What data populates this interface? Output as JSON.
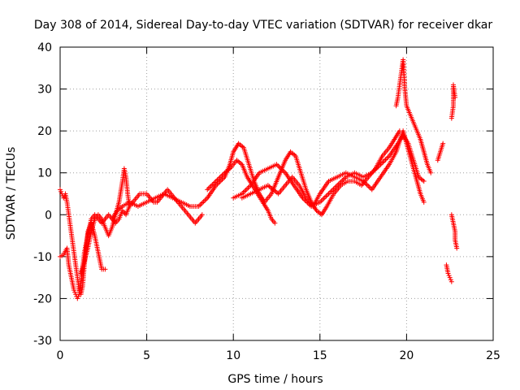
{
  "chart_data": {
    "type": "scatter",
    "title": "Day 308 of 2014, Sidereal Day-to-day VTEC variation (SDTVAR) for receiver dkar",
    "xlabel": "GPS time / hours",
    "ylabel": "SDTVAR / TECUs",
    "xlim": [
      0,
      25
    ],
    "ylim": [
      -30,
      40
    ],
    "xticks": [
      0,
      5,
      10,
      15,
      20,
      25
    ],
    "yticks": [
      -30,
      -20,
      -10,
      0,
      10,
      20,
      30,
      40
    ],
    "grid": true,
    "marker": "+",
    "color": "#ff0000",
    "series": [
      {
        "name": "s1",
        "points": [
          [
            0.0,
            -10
          ],
          [
            0.2,
            -9.5
          ],
          [
            0.4,
            -8
          ],
          [
            0.5,
            -12
          ],
          [
            0.6,
            -14
          ],
          [
            0.7,
            -16
          ],
          [
            0.8,
            -18
          ],
          [
            0.9,
            -19
          ],
          [
            1.0,
            -20
          ],
          [
            1.1,
            -19
          ],
          [
            1.2,
            -16
          ],
          [
            1.3,
            -13
          ],
          [
            1.4,
            -9
          ],
          [
            1.6,
            -5
          ],
          [
            1.8,
            -1
          ],
          [
            2.0,
            0
          ],
          [
            2.2,
            -1
          ],
          [
            2.4,
            -2
          ],
          [
            2.6,
            -1
          ],
          [
            2.8,
            0
          ],
          [
            3.0,
            -1
          ],
          [
            3.2,
            -2
          ],
          [
            3.4,
            -1
          ],
          [
            3.6,
            1
          ],
          [
            3.8,
            0
          ],
          [
            4.0,
            2
          ],
          [
            4.2,
            3
          ],
          [
            4.4,
            4
          ],
          [
            4.6,
            5
          ],
          [
            4.8,
            5
          ],
          [
            5.0,
            5
          ],
          [
            5.2,
            4
          ],
          [
            5.4,
            3
          ],
          [
            5.6,
            3
          ],
          [
            5.8,
            4
          ],
          [
            6.0,
            5
          ],
          [
            6.2,
            6
          ],
          [
            6.4,
            5
          ],
          [
            6.6,
            4
          ],
          [
            6.8,
            3
          ],
          [
            7.0,
            2
          ],
          [
            7.2,
            1
          ],
          [
            7.4,
            0
          ],
          [
            7.6,
            -1
          ],
          [
            7.8,
            -2
          ],
          [
            8.0,
            -1
          ],
          [
            8.2,
            0
          ]
        ]
      },
      {
        "name": "s2",
        "points": [
          [
            0.0,
            6
          ],
          [
            0.1,
            5
          ],
          [
            0.2,
            4
          ],
          [
            0.3,
            5
          ],
          [
            0.4,
            3
          ],
          [
            0.5,
            0
          ],
          [
            0.6,
            -3
          ],
          [
            0.7,
            -6
          ],
          [
            0.8,
            -9
          ],
          [
            0.9,
            -12
          ],
          [
            1.0,
            -15
          ],
          [
            1.1,
            -18
          ],
          [
            1.2,
            -19
          ],
          [
            1.3,
            -17
          ],
          [
            1.4,
            -12
          ],
          [
            1.5,
            -8
          ],
          [
            1.6,
            -4
          ],
          [
            1.8,
            -2
          ],
          [
            2.0,
            -5
          ],
          [
            2.2,
            -9
          ],
          [
            2.4,
            -13
          ],
          [
            2.6,
            -13
          ]
        ]
      },
      {
        "name": "s3",
        "points": [
          [
            1.2,
            -14
          ],
          [
            1.4,
            -11
          ],
          [
            1.6,
            -8
          ],
          [
            1.8,
            -4
          ],
          [
            2.0,
            -1
          ],
          [
            2.2,
            0
          ],
          [
            2.4,
            -1
          ],
          [
            2.6,
            -3
          ],
          [
            2.8,
            -5
          ],
          [
            3.0,
            -3
          ],
          [
            3.2,
            0
          ],
          [
            3.4,
            3
          ],
          [
            3.6,
            8
          ],
          [
            3.7,
            11
          ],
          [
            3.8,
            9
          ],
          [
            3.9,
            5
          ],
          [
            4.0,
            2
          ]
        ]
      },
      {
        "name": "s4",
        "points": [
          [
            3.0,
            -1
          ],
          [
            3.3,
            1
          ],
          [
            3.6,
            2
          ],
          [
            4.0,
            3
          ],
          [
            4.5,
            2
          ],
          [
            5.0,
            3
          ],
          [
            5.5,
            4
          ],
          [
            6.0,
            5
          ],
          [
            6.5,
            4
          ],
          [
            7.0,
            3
          ],
          [
            7.5,
            2
          ],
          [
            8.0,
            2
          ],
          [
            8.5,
            4
          ],
          [
            9.0,
            7
          ],
          [
            9.5,
            9
          ],
          [
            9.8,
            12
          ],
          [
            10.0,
            15
          ],
          [
            10.3,
            17
          ],
          [
            10.6,
            16
          ],
          [
            10.9,
            12
          ],
          [
            11.2,
            8
          ],
          [
            11.5,
            5
          ],
          [
            11.8,
            3
          ],
          [
            12.2,
            5
          ],
          [
            12.6,
            9
          ],
          [
            13.0,
            13
          ],
          [
            13.3,
            15
          ],
          [
            13.6,
            14
          ],
          [
            13.9,
            10
          ],
          [
            14.2,
            6
          ],
          [
            14.5,
            3
          ],
          [
            14.8,
            1
          ],
          [
            15.1,
            0
          ],
          [
            15.4,
            2
          ],
          [
            15.8,
            5
          ],
          [
            16.2,
            7
          ],
          [
            16.6,
            8
          ],
          [
            17.0,
            8
          ],
          [
            17.4,
            7
          ],
          [
            17.8,
            9
          ],
          [
            18.2,
            11
          ],
          [
            18.6,
            14
          ],
          [
            19.0,
            16
          ],
          [
            19.3,
            18
          ],
          [
            19.6,
            20
          ]
        ]
      },
      {
        "name": "s5",
        "points": [
          [
            8.5,
            6
          ],
          [
            9.0,
            8
          ],
          [
            9.5,
            10
          ],
          [
            9.8,
            11
          ],
          [
            10.2,
            13
          ],
          [
            10.5,
            12
          ],
          [
            10.8,
            9
          ],
          [
            11.1,
            7
          ],
          [
            11.4,
            5
          ],
          [
            11.7,
            3
          ],
          [
            12.0,
            1
          ],
          [
            12.2,
            -1
          ],
          [
            12.4,
            -2
          ]
        ]
      },
      {
        "name": "s6",
        "points": [
          [
            10.0,
            4
          ],
          [
            10.5,
            5
          ],
          [
            11.0,
            7
          ],
          [
            11.5,
            10
          ],
          [
            12.0,
            11
          ],
          [
            12.5,
            12
          ],
          [
            13.0,
            10
          ],
          [
            13.5,
            7
          ],
          [
            14.0,
            4
          ],
          [
            14.5,
            2
          ],
          [
            15.0,
            3
          ],
          [
            15.5,
            5
          ],
          [
            16.0,
            7
          ],
          [
            16.5,
            9
          ],
          [
            17.0,
            10
          ],
          [
            17.5,
            9
          ],
          [
            18.0,
            10
          ],
          [
            18.5,
            12
          ],
          [
            19.0,
            14
          ],
          [
            19.5,
            17
          ],
          [
            19.8,
            19
          ],
          [
            20.1,
            17
          ],
          [
            20.4,
            13
          ],
          [
            20.7,
            9
          ],
          [
            21.0,
            8
          ]
        ]
      },
      {
        "name": "s7",
        "points": [
          [
            10.5,
            4
          ],
          [
            11.0,
            5
          ],
          [
            11.5,
            6
          ],
          [
            12.0,
            7
          ],
          [
            12.3,
            6
          ],
          [
            12.6,
            5
          ],
          [
            13.0,
            7
          ],
          [
            13.4,
            9
          ],
          [
            13.8,
            7
          ],
          [
            14.2,
            4
          ],
          [
            14.6,
            2
          ],
          [
            15.0,
            5
          ],
          [
            15.5,
            8
          ],
          [
            16.0,
            9
          ],
          [
            16.5,
            10
          ],
          [
            17.0,
            9
          ],
          [
            17.5,
            8
          ],
          [
            18.0,
            6
          ],
          [
            18.5,
            9
          ],
          [
            19.0,
            12
          ],
          [
            19.4,
            15
          ],
          [
            19.8,
            20
          ],
          [
            20.2,
            14
          ],
          [
            20.6,
            8
          ],
          [
            20.8,
            5
          ],
          [
            21.0,
            3
          ]
        ]
      },
      {
        "name": "s8",
        "points": [
          [
            19.4,
            26
          ],
          [
            19.5,
            28
          ],
          [
            19.6,
            31
          ],
          [
            19.7,
            34
          ],
          [
            19.8,
            37
          ],
          [
            19.9,
            30
          ],
          [
            20.0,
            26
          ],
          [
            20.2,
            24
          ],
          [
            20.4,
            22
          ],
          [
            20.6,
            20
          ],
          [
            20.8,
            18
          ],
          [
            21.0,
            15
          ],
          [
            21.2,
            12
          ],
          [
            21.4,
            10
          ]
        ]
      },
      {
        "name": "s9",
        "points": [
          [
            21.8,
            13
          ],
          [
            22.1,
            17
          ],
          [
            22.3,
            -12
          ],
          [
            22.4,
            -14
          ],
          [
            22.5,
            -15
          ],
          [
            22.6,
            -16
          ],
          [
            22.6,
            23
          ],
          [
            22.7,
            26
          ],
          [
            22.7,
            31
          ],
          [
            22.8,
            28
          ],
          [
            22.6,
            0
          ],
          [
            22.7,
            -2
          ],
          [
            22.8,
            -4
          ],
          [
            22.8,
            -6
          ],
          [
            22.9,
            -8
          ]
        ]
      }
    ]
  }
}
